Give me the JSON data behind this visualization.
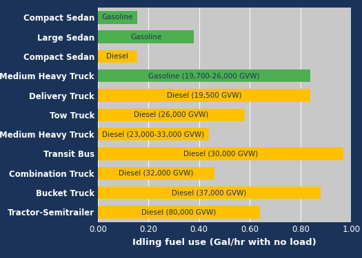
{
  "categories": [
    "Tractor-Semitrailer",
    "Bucket Truck",
    "Combination Truck",
    "Transit Bus",
    "Medium Heavy Truck",
    "Tow Truck",
    "Delivery Truck",
    "Medium Heavy Truck",
    "Compact Sedan",
    "Large Sedan",
    "Compact Sedan"
  ],
  "labels": [
    "Diesel (80,000 GVW)",
    "Diesel (37,000 GVW)",
    "Diesel (32,000 GVW)",
    "Diesel (30,000 GVW)",
    "Diesel (23,000-33,000 GVW)",
    "Diesel (26,000 GVW)",
    "Diesel (19,500 GVW)",
    "Gasoline (19,700-26,000 GVW)",
    "Diesel",
    "Gasoline",
    "Gasoline"
  ],
  "values": [
    0.64,
    0.88,
    0.46,
    0.97,
    0.44,
    0.58,
    0.84,
    0.84,
    0.155,
    0.38,
    0.155
  ],
  "colors": [
    "#FFC000",
    "#FFC000",
    "#FFC000",
    "#FFC000",
    "#FFC000",
    "#FFC000",
    "#FFC000",
    "#4CAF50",
    "#FFC000",
    "#4CAF50",
    "#4CAF50"
  ],
  "xlabel": "Idling fuel use (Gal/hr with no load)",
  "xlim": [
    0.0,
    1.0
  ],
  "xticks": [
    0.0,
    0.2,
    0.4,
    0.6,
    0.8,
    1.0
  ],
  "bg_color": "#1B3358",
  "plot_bg_color": "#C8C8C8",
  "bar_height": 0.65,
  "text_color_dark": "#1B3358",
  "text_color_light": "#ffffff",
  "label_fontsize": 7.5,
  "tick_label_fontsize": 8.5,
  "xlabel_fontsize": 9.5,
  "ycat_fontsize": 8.5
}
